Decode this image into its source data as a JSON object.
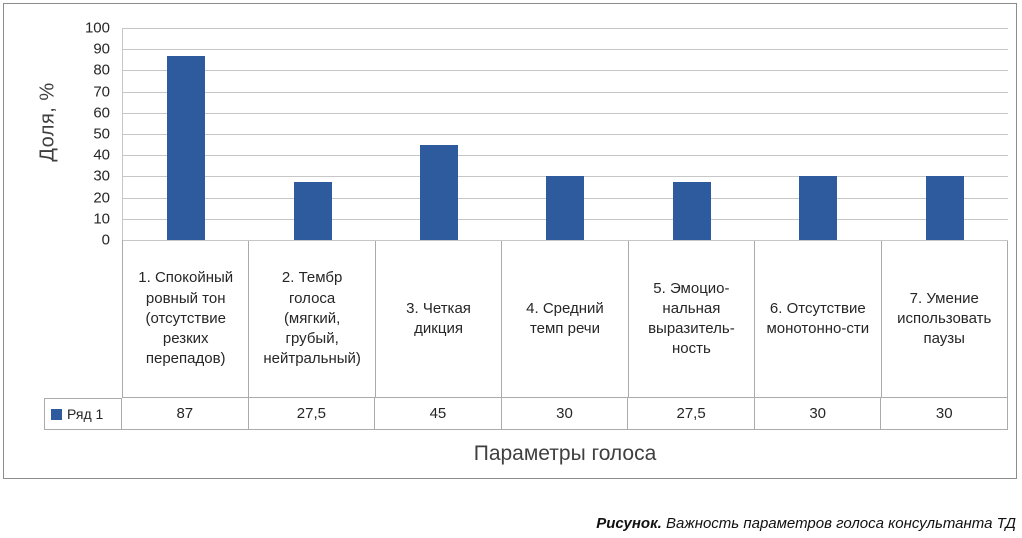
{
  "chart_data": {
    "type": "bar",
    "title": "",
    "xlabel": "Параметры голоса",
    "ylabel": "Доля, %",
    "ylim": [
      0,
      100
    ],
    "yticks": [
      0,
      10,
      20,
      30,
      40,
      50,
      60,
      70,
      80,
      90,
      100
    ],
    "grid": true,
    "legend_position": "table-left",
    "categories": [
      "1. Спокойный ровный тон (отсутствие резких перепадов)",
      "2. Тембр голоса (мягкий, грубый, нейтральный)",
      "3. Четкая дикция",
      "4. Средний темп речи",
      "5. Эмоцио-нальная выразитель-ность",
      "6. Отсутствие монотонно-сти",
      "7. Умение использовать паузы"
    ],
    "series": [
      {
        "name": "Ряд 1",
        "values": [
          87,
          27.5,
          45,
          30,
          27.5,
          30,
          30
        ],
        "value_labels": [
          "87",
          "27,5",
          "45",
          "30",
          "27,5",
          "30",
          "30"
        ],
        "color": "#2e5b9e"
      }
    ]
  },
  "caption": {
    "label": "Рисунок.",
    "text": " Важность параметров голоса консультанта ТД"
  }
}
